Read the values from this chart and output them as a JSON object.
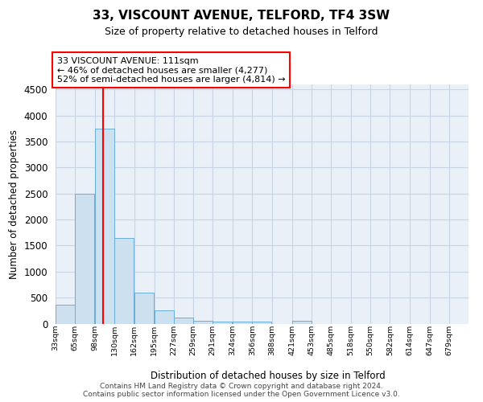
{
  "title": "33, VISCOUNT AVENUE, TELFORD, TF4 3SW",
  "subtitle": "Size of property relative to detached houses in Telford",
  "xlabel": "Distribution of detached houses by size in Telford",
  "ylabel": "Number of detached properties",
  "footer_line1": "Contains HM Land Registry data © Crown copyright and database right 2024.",
  "footer_line2": "Contains public sector information licensed under the Open Government Licence v3.0.",
  "bin_labels": [
    "33sqm",
    "65sqm",
    "98sqm",
    "130sqm",
    "162sqm",
    "195sqm",
    "227sqm",
    "259sqm",
    "291sqm",
    "324sqm",
    "356sqm",
    "388sqm",
    "421sqm",
    "453sqm",
    "485sqm",
    "518sqm",
    "550sqm",
    "582sqm",
    "614sqm",
    "647sqm",
    "679sqm"
  ],
  "bin_edges": [
    33,
    65,
    98,
    130,
    162,
    195,
    227,
    259,
    291,
    324,
    356,
    388,
    421,
    453,
    485,
    518,
    550,
    582,
    614,
    647,
    679
  ],
  "bar_heights": [
    370,
    2500,
    3750,
    1650,
    600,
    250,
    110,
    60,
    45,
    45,
    45,
    0,
    55,
    0,
    0,
    0,
    0,
    0,
    0,
    0
  ],
  "bar_color": "#cce0f0",
  "bar_edge_color": "#6aaed6",
  "grid_color": "#c8d4e4",
  "background_color": "#eaf0f8",
  "red_line_x": 111,
  "annotation_line1": "33 VISCOUNT AVENUE: 111sqm",
  "annotation_line2": "← 46% of detached houses are smaller (4,277)",
  "annotation_line3": "52% of semi-detached houses are larger (4,814) →",
  "ylim_max": 4600,
  "yticks": [
    0,
    500,
    1000,
    1500,
    2000,
    2500,
    3000,
    3500,
    4000,
    4500
  ]
}
